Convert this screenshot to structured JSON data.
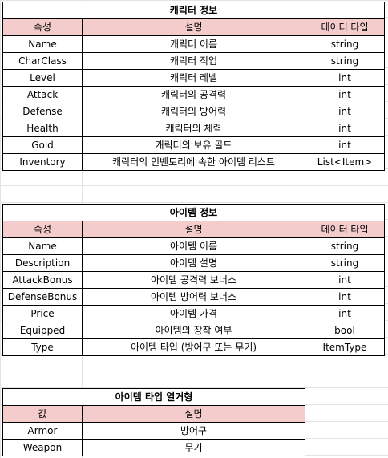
{
  "character_table": {
    "title": "캐릭터 정보",
    "headers": [
      "속성",
      "설명",
      "데이터 타입"
    ],
    "rows": [
      [
        "Name",
        "캐릭터 이름",
        "string"
      ],
      [
        "CharClass",
        "캐릭터 직업",
        "string"
      ],
      [
        "Level",
        "캐릭터 레벨",
        "int"
      ],
      [
        "Attack",
        "캐릭터의 공격력",
        "int"
      ],
      [
        "Defense",
        "캐릭터의 방어력",
        "int"
      ],
      [
        "Health",
        "캐릭터의 체력",
        "int"
      ],
      [
        "Gold",
        "캐릭터의 보유 골드",
        "int"
      ],
      [
        "Inventory",
        "캐릭터의 인벤토리에 속한 아이템 리스트",
        "List<Item>"
      ]
    ]
  },
  "item_table": {
    "title": "아이템 정보",
    "headers": [
      "속성",
      "설명",
      "데이터 타입"
    ],
    "rows": [
      [
        "Name",
        "아이템 이름",
        "string"
      ],
      [
        "Description",
        "아이템 설명",
        "string"
      ],
      [
        "AttackBonus",
        "아이템 공격력 보너스",
        "int"
      ],
      [
        "DefenseBonus",
        "아이템 방어력 보너스",
        "int"
      ],
      [
        "Price",
        "아이템 가격",
        "int"
      ],
      [
        "Equipped",
        "아이템의 장착 여부",
        "bool"
      ],
      [
        "Type",
        "아이템 타입 (방어구 또는 무기)",
        "ItemType"
      ]
    ]
  },
  "itemtype_table": {
    "title": "아이템 타입 열거형",
    "headers": [
      "값",
      "설명"
    ],
    "rows": [
      [
        "Armor",
        "방어구"
      ],
      [
        "Weapon",
        "무기"
      ]
    ]
  },
  "colors": {
    "header_fill": "#f4cccc",
    "border": "#000000",
    "gridline": "#e3e3e3"
  }
}
